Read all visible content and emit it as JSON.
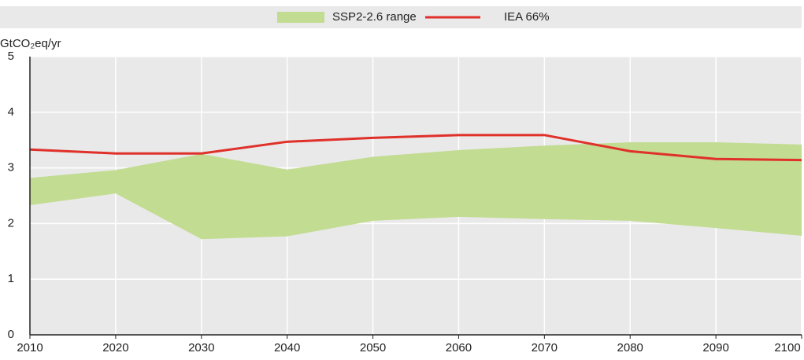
{
  "chart_data": {
    "type": "line_band",
    "ylabel": "GtCO₂eq/yr",
    "x": [
      2010,
      2020,
      2030,
      2040,
      2050,
      2060,
      2070,
      2080,
      2090,
      2100
    ],
    "band": {
      "name": "SSP2-2.6 range",
      "color": "#c2dc91",
      "upper": [
        2.82,
        2.96,
        3.25,
        2.97,
        3.2,
        3.32,
        3.4,
        3.46,
        3.46,
        3.42
      ],
      "lower": [
        2.33,
        2.54,
        1.72,
        1.77,
        2.05,
        2.12,
        2.08,
        2.05,
        1.92,
        1.78
      ]
    },
    "series": [
      {
        "name": "IEA 66%",
        "color": "#e0302a",
        "values": [
          3.33,
          3.26,
          3.26,
          3.47,
          3.54,
          3.59,
          3.59,
          3.3,
          3.16,
          3.14
        ]
      }
    ],
    "xlim": [
      2010,
      2100
    ],
    "xticks": [
      2010,
      2020,
      2030,
      2040,
      2050,
      2060,
      2070,
      2080,
      2090,
      2100
    ],
    "ylim": [
      0,
      5
    ],
    "yticks": [
      0,
      1,
      2,
      3,
      4,
      5
    ],
    "grid": true,
    "legend": "top"
  }
}
